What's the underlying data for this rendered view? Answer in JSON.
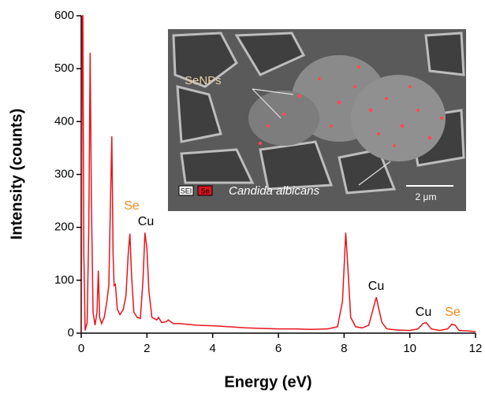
{
  "chart_data": {
    "type": "line",
    "x_label": "Energy (eV)",
    "y_label": "Intensity (counts)",
    "xlim": [
      0,
      12
    ],
    "ylim": [
      0,
      600
    ],
    "xticks": [
      0,
      2,
      4,
      6,
      8,
      10,
      12
    ],
    "yticks": [
      0,
      100,
      200,
      300,
      400,
      500,
      600
    ],
    "color": "#e8141c",
    "x": [
      0.0,
      0.03,
      0.05,
      0.08,
      0.12,
      0.18,
      0.23,
      0.27,
      0.31,
      0.36,
      0.42,
      0.48,
      0.52,
      0.56,
      0.62,
      0.7,
      0.78,
      0.84,
      0.89,
      0.93,
      0.97,
      1.0,
      1.04,
      1.1,
      1.18,
      1.28,
      1.36,
      1.43,
      1.48,
      1.53,
      1.6,
      1.7,
      1.8,
      1.88,
      1.94,
      2.0,
      2.06,
      2.15,
      2.3,
      2.35,
      2.45,
      2.6,
      2.65,
      2.8,
      3.0,
      3.5,
      4.0,
      4.5,
      5.0,
      5.5,
      6.0,
      6.5,
      7.0,
      7.5,
      7.8,
      7.95,
      8.05,
      8.12,
      8.2,
      8.35,
      8.55,
      8.75,
      8.88,
      8.98,
      9.06,
      9.15,
      9.3,
      9.6,
      10.0,
      10.25,
      10.4,
      10.5,
      10.65,
      10.9,
      11.15,
      11.28,
      11.38,
      11.5,
      11.8,
      12.0
    ],
    "values": [
      0,
      600,
      600,
      150,
      5,
      20,
      200,
      530,
      250,
      40,
      15,
      40,
      118,
      30,
      18,
      30,
      60,
      90,
      250,
      372,
      150,
      90,
      92,
      45,
      35,
      45,
      70,
      150,
      188,
      110,
      40,
      30,
      28,
      100,
      190,
      160,
      80,
      30,
      25,
      30,
      20,
      22,
      25,
      18,
      18,
      15,
      14,
      12,
      10,
      9,
      8,
      8,
      7,
      8,
      12,
      60,
      190,
      120,
      30,
      12,
      10,
      15,
      45,
      68,
      45,
      20,
      8,
      6,
      5,
      8,
      18,
      20,
      8,
      5,
      8,
      17,
      15,
      5,
      4,
      3
    ],
    "annotations": [
      {
        "text": "Se",
        "color": "#f08a1c"
      },
      {
        "text": "Cu",
        "color": "#000000"
      },
      {
        "text": "Cu",
        "color": "#000000"
      },
      {
        "text": "Cu",
        "color": "#000000"
      },
      {
        "text": "Se",
        "color": "#f08a1c"
      }
    ],
    "inset": {
      "label": "SeNPs",
      "organism": "Candida albicans",
      "detector": "SEI",
      "element": "Se",
      "scale": "2 μm"
    }
  }
}
